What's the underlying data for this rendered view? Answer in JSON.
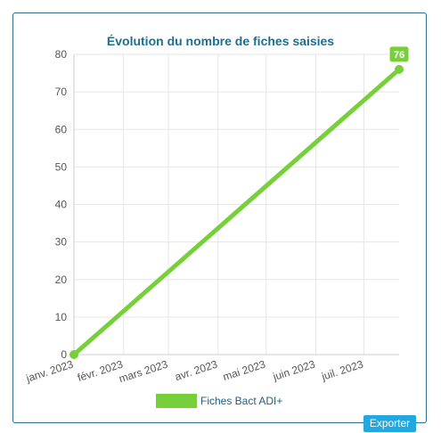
{
  "chart_data": {
    "type": "line",
    "title": "Évolution du nombre de fiches saisies",
    "categories": [
      "janv. 2023",
      "févr. 2023",
      "mars 2023",
      "avr. 2023",
      "mai 2023",
      "juin 2023",
      "juil. 2023"
    ],
    "x": [
      "2023-01-01",
      "2023-07-23"
    ],
    "series": [
      {
        "name": "Fiches Bact ADI+",
        "values": [
          0,
          76
        ],
        "color": "#77d03a"
      }
    ],
    "ylim": [
      0,
      80
    ],
    "yticks": [
      "0",
      "10",
      "20",
      "30",
      "40",
      "50",
      "60",
      "70",
      "80"
    ],
    "data_label": "76",
    "grid": true,
    "legend": "bottom"
  },
  "legend": {
    "label": "Fiches Bact ADI+"
  },
  "export_button": {
    "label": "Exporter"
  }
}
